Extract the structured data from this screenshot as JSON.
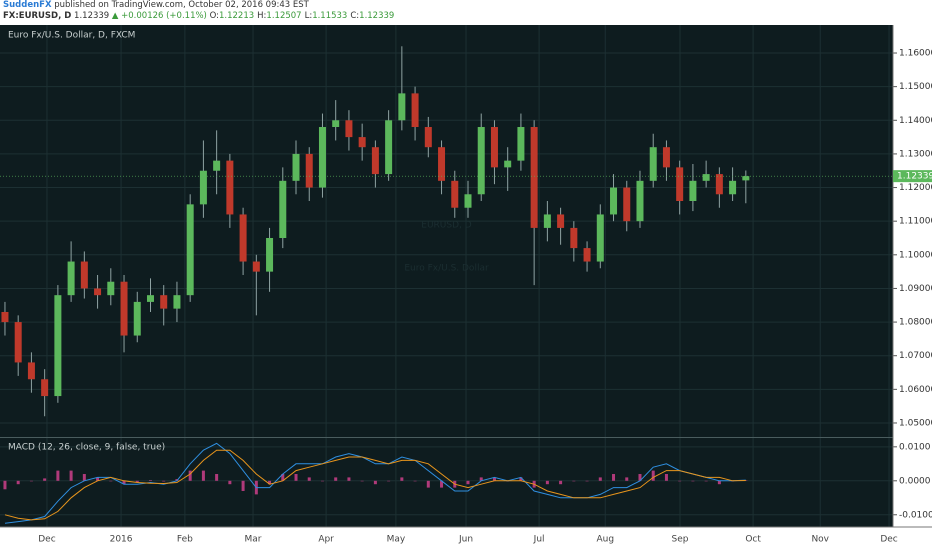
{
  "header": {
    "author": "SuddenFX",
    "published": "published on TradingView.com, October 02, 2016 09:43 EST",
    "symbol": "FX:EURUSD, D",
    "last": "1.12339",
    "change": "▲ +0.00126 (+0.11%)",
    "quote": [
      {
        "label": "O:",
        "value": "1.12213"
      },
      {
        "label": "H:",
        "value": "1.12507"
      },
      {
        "label": "L:",
        "value": "1.11533"
      },
      {
        "label": "C:",
        "value": "1.12339"
      }
    ]
  },
  "chart_data": {
    "type": "candlestick",
    "title": "Euro Fx/U.S. Dollar, D, FXCM",
    "watermark": "EURUSD, D",
    "watermark_subtitle": "Euro Fx/U.S. Dollar",
    "up_color": "#5cb85c",
    "down_color": "#c0392b",
    "grid": true,
    "x": [
      0,
      4,
      8,
      12,
      16,
      20,
      24,
      28,
      32,
      36,
      40,
      44,
      48,
      52,
      56,
      60,
      64,
      68,
      72,
      76,
      80,
      84,
      88,
      92,
      96,
      100,
      104,
      108,
      112,
      116,
      120,
      124,
      128,
      132,
      136,
      140,
      144,
      148,
      152,
      156,
      160,
      164,
      168,
      172,
      176,
      180,
      184,
      188,
      192,
      196,
      200,
      204,
      208,
      212,
      216,
      220,
      224
    ],
    "open": [
      1.083,
      1.08,
      1.068,
      1.063,
      1.058,
      1.088,
      1.098,
      1.09,
      1.088,
      1.092,
      1.076,
      1.086,
      1.088,
      1.084,
      1.088,
      1.115,
      1.125,
      1.128,
      1.112,
      1.098,
      1.095,
      1.105,
      1.122,
      1.13,
      1.12,
      1.138,
      1.14,
      1.135,
      1.132,
      1.124,
      1.14,
      1.148,
      1.138,
      1.132,
      1.122,
      1.114,
      1.118,
      1.138,
      1.126,
      1.128,
      1.138,
      1.108,
      1.112,
      1.108,
      1.102,
      1.098,
      1.112,
      1.12,
      1.11,
      1.122,
      1.132,
      1.126,
      1.116,
      1.122,
      1.124,
      1.118,
      1.12213
    ],
    "high": [
      1.086,
      1.082,
      1.071,
      1.066,
      1.091,
      1.104,
      1.101,
      1.094,
      1.096,
      1.094,
      1.089,
      1.093,
      1.091,
      1.092,
      1.118,
      1.134,
      1.137,
      1.13,
      1.114,
      1.1,
      1.108,
      1.126,
      1.134,
      1.132,
      1.142,
      1.146,
      1.143,
      1.139,
      1.134,
      1.143,
      1.162,
      1.15,
      1.141,
      1.134,
      1.125,
      1.122,
      1.142,
      1.14,
      1.132,
      1.142,
      1.14,
      1.116,
      1.114,
      1.11,
      1.104,
      1.115,
      1.124,
      1.122,
      1.125,
      1.136,
      1.134,
      1.128,
      1.127,
      1.128,
      1.126,
      1.126,
      1.12507
    ],
    "low": [
      1.076,
      1.064,
      1.059,
      1.052,
      1.056,
      1.086,
      1.087,
      1.084,
      1.085,
      1.071,
      1.074,
      1.083,
      1.079,
      1.08,
      1.086,
      1.111,
      1.118,
      1.108,
      1.094,
      1.082,
      1.089,
      1.102,
      1.118,
      1.116,
      1.117,
      1.134,
      1.131,
      1.128,
      1.12,
      1.122,
      1.137,
      1.134,
      1.129,
      1.118,
      1.111,
      1.111,
      1.116,
      1.121,
      1.119,
      1.125,
      1.091,
      1.104,
      1.103,
      1.098,
      1.095,
      1.096,
      1.11,
      1.107,
      1.108,
      1.12,
      1.122,
      1.112,
      1.113,
      1.12,
      1.114,
      1.116,
      1.11533
    ],
    "close": [
      1.08,
      1.068,
      1.063,
      1.058,
      1.088,
      1.098,
      1.09,
      1.088,
      1.092,
      1.076,
      1.086,
      1.088,
      1.084,
      1.088,
      1.115,
      1.125,
      1.128,
      1.112,
      1.098,
      1.095,
      1.105,
      1.122,
      1.13,
      1.12,
      1.138,
      1.14,
      1.135,
      1.132,
      1.124,
      1.14,
      1.148,
      1.138,
      1.132,
      1.122,
      1.114,
      1.118,
      1.138,
      1.126,
      1.128,
      1.138,
      1.108,
      1.112,
      1.108,
      1.102,
      1.098,
      1.112,
      1.12,
      1.11,
      1.122,
      1.132,
      1.126,
      1.116,
      1.122,
      1.124,
      1.118,
      1.122,
      1.12339
    ],
    "xlim": [
      -1.5,
      268.5
    ],
    "xticks": [
      {
        "value": 12.7,
        "label": "Dec"
      },
      {
        "value": 35.1,
        "label": "2016"
      },
      {
        "value": 54.4,
        "label": "Feb"
      },
      {
        "value": 75,
        "label": "Mar"
      },
      {
        "value": 97.1,
        "label": "Apr"
      },
      {
        "value": 118.2,
        "label": "May"
      },
      {
        "value": 139.4,
        "label": "Jun"
      },
      {
        "value": 161.5,
        "label": "Jul"
      },
      {
        "value": 181.5,
        "label": "Aug"
      },
      {
        "value": 204.1,
        "label": "Sep"
      },
      {
        "value": 226.2,
        "label": "Oct"
      },
      {
        "value": 246.5,
        "label": "Nov"
      },
      {
        "value": 267.3,
        "label": "Dec"
      }
    ],
    "ylim": [
      1.04583,
      1.16833
    ],
    "yticks": [
      {
        "value": 1.05,
        "label": "1.05000"
      },
      {
        "value": 1.06,
        "label": "1.06000"
      },
      {
        "value": 1.07,
        "label": "1.07000"
      },
      {
        "value": 1.08,
        "label": "1.08000"
      },
      {
        "value": 1.09,
        "label": "1.09000"
      },
      {
        "value": 1.1,
        "label": "1.10000"
      },
      {
        "value": 1.11,
        "label": "1.11000"
      },
      {
        "value": 1.12,
        "label": "1.12000"
      },
      {
        "value": 1.13,
        "label": "1.13000"
      },
      {
        "value": 1.14,
        "label": "1.14000"
      },
      {
        "value": 1.15,
        "label": "1.15000"
      },
      {
        "value": 1.16,
        "label": "1.16000"
      }
    ],
    "last_price": 1.12339,
    "last_price_color": "#5cb85c",
    "indicator": {
      "type": "macd",
      "label": "MACD (12, 26, close, 9, false, true)",
      "macd_color": "#2f8fe0",
      "signal_color": "#e8951c",
      "histogram_color": "#b03a7a",
      "ylim": [
        -0.0136,
        0.0126
      ],
      "yticks": [
        {
          "value": 0.01,
          "label": "0.0100"
        },
        {
          "value": 0,
          "label": "0.0000"
        },
        {
          "value": -0.01,
          "label": "-0.0100"
        }
      ],
      "macd": [
        -0.0125,
        -0.012,
        -0.0115,
        -0.0105,
        -0.006,
        -0.002,
        0,
        0.001,
        0.001,
        -0.001,
        -0.001,
        -0.0005,
        -0.001,
        0,
        0.005,
        0.009,
        0.011,
        0.008,
        0.003,
        -0.002,
        -0.002,
        0.002,
        0.005,
        0.005,
        0.005,
        0.007,
        0.008,
        0.007,
        0.005,
        0.005,
        0.007,
        0.006,
        0.003,
        0,
        -0.003,
        -0.003,
        0,
        0.001,
        0,
        0.001,
        -0.003,
        -0.004,
        -0.005,
        -0.005,
        -0.005,
        -0.004,
        -0.002,
        -0.002,
        0,
        0.004,
        0.005,
        0.003,
        0.002,
        0.001,
        0,
        0,
        0.0002
      ],
      "signal": [
        -0.01,
        -0.011,
        -0.0115,
        -0.0112,
        -0.009,
        -0.005,
        -0.002,
        0,
        0.001,
        0,
        -0.0005,
        -0.0007,
        -0.0008,
        -0.0005,
        0.002,
        0.006,
        0.009,
        0.009,
        0.006,
        0.002,
        -0.001,
        0,
        0.003,
        0.004,
        0.005,
        0.006,
        0.007,
        0.007,
        0.006,
        0.005,
        0.006,
        0.006,
        0.005,
        0.002,
        -0.001,
        -0.002,
        -0.001,
        0,
        0,
        0,
        -0.001,
        -0.003,
        -0.004,
        -0.005,
        -0.005,
        -0.005,
        -0.004,
        -0.003,
        -0.002,
        0.001,
        0.003,
        0.003,
        0.002,
        0.001,
        0.001,
        0,
        0.0001
      ],
      "histogram": [
        -0.0025,
        -0.001,
        0,
        0.0007,
        0.003,
        0.003,
        0.002,
        0.001,
        0,
        -0.001,
        -0.0005,
        0.0002,
        -0.0002,
        0.0005,
        0.003,
        0.003,
        0.002,
        -0.001,
        -0.003,
        -0.004,
        -0.001,
        0.002,
        0.002,
        0.001,
        0,
        0.001,
        0.001,
        0,
        -0.001,
        0,
        0.001,
        0,
        -0.002,
        -0.002,
        -0.002,
        -0.001,
        0.001,
        0.001,
        0,
        0.001,
        -0.002,
        -0.001,
        -0.001,
        0,
        0,
        0.001,
        0.002,
        0.001,
        0.002,
        0.003,
        0.002,
        0,
        0,
        0,
        -0.001,
        0,
        0.0001
      ]
    }
  }
}
